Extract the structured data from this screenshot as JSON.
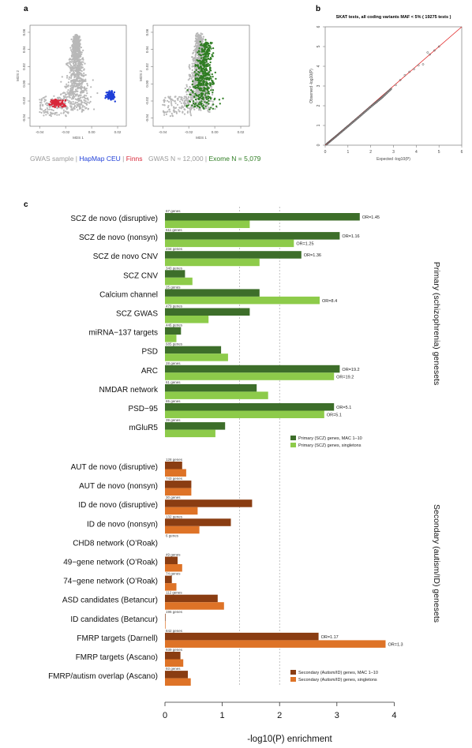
{
  "panel_labels": {
    "a": "a",
    "b": "b",
    "c": "c"
  },
  "panel_a": {
    "left_legend": {
      "sample": "GWAS sample",
      "sep1": " | ",
      "hapmap": "HapMap CEU",
      "sep2": " | ",
      "finns": "Finns"
    },
    "right_legend": {
      "gwas": "GWAS N ≈ 12,000",
      "sep": " | ",
      "exome": "Exome N = 5,079"
    },
    "xlabel": "MDS 1",
    "ylabel": "MDS 2",
    "xticks": [
      "-0.04",
      "-0.02",
      "0.00",
      "0.02"
    ],
    "yticks": [
      "-0.04",
      "-0.02",
      "0.00",
      "0.02",
      "0.04",
      "0.06"
    ],
    "colors": {
      "gwas": "#b8b8b8",
      "hapmap": "#1f3fd8",
      "finns": "#d8283a",
      "exome": "#2e7d22"
    }
  },
  "chart_data": [
    {
      "type": "scatter",
      "title": "SKAT tests, all coding variants MAF < 5% ( 19275 tests )",
      "xlabel": "Expected -log10(P)",
      "ylabel": "Observed -log10(P)",
      "xlim": [
        0,
        6
      ],
      "ylim": [
        0,
        6
      ],
      "xticks": [
        "0",
        "1",
        "2",
        "3",
        "4",
        "5",
        "6"
      ],
      "yticks": [
        "0",
        "1",
        "2",
        "3",
        "4",
        "5",
        "6"
      ],
      "reference_line": "y = x",
      "points": [
        [
          0.05,
          0.04
        ],
        [
          0.3,
          0.28
        ],
        [
          0.6,
          0.57
        ],
        [
          1.0,
          0.96
        ],
        [
          1.5,
          1.45
        ],
        [
          2.0,
          1.95
        ],
        [
          2.5,
          2.42
        ],
        [
          2.9,
          2.86
        ],
        [
          3.1,
          3.05
        ],
        [
          3.3,
          3.3
        ],
        [
          3.5,
          3.55
        ],
        [
          3.7,
          3.72
        ],
        [
          3.9,
          3.85
        ],
        [
          4.1,
          4.05
        ],
        [
          4.3,
          4.1
        ],
        [
          4.5,
          4.7
        ],
        [
          4.6,
          4.6
        ],
        [
          5.0,
          5.0
        ]
      ]
    },
    {
      "type": "bar",
      "orientation": "horizontal",
      "xlabel": "-log10(P) enrichment",
      "xlim": [
        0,
        4
      ],
      "xticks": [
        "0",
        "1",
        "2",
        "3",
        "4"
      ],
      "reference_lines": [
        1.3,
        2.0
      ],
      "groups": [
        {
          "label": "Primary (schizophrenia) genesets",
          "legend": [
            "Primary (SCZ) genes, MAC 1–10",
            "Primary (SCZ) genes, singletons"
          ],
          "colors": [
            "#3d6e2a",
            "#8dcb4a"
          ],
          "categories": [
            "SCZ de novo (disruptive)",
            "SCZ de novo (nonsyn)",
            "SCZ de novo CNV",
            "SCZ CNV",
            "Calcium channel",
            "SCZ GWAS",
            "miRNA−137 targets",
            "PSD",
            "ARC",
            "NMDAR network",
            "PSD−95",
            "mGluR5"
          ],
          "gene_counts": [
            "67 genes",
            "611 genes",
            "234 genes",
            "340 genes",
            "25 genes",
            "479 genes",
            "446 genes",
            "685 genes",
            "28 genes",
            "61 genes",
            "65 genes",
            "39 genes"
          ],
          "series": [
            {
              "name": "Primary (SCZ) genes, MAC 1–10",
              "values": [
                3.4,
                3.05,
                2.38,
                0.35,
                1.65,
                1.48,
                0.28,
                0.98,
                3.05,
                1.6,
                2.95,
                1.05
              ],
              "labels": [
                "OR=1.45",
                "OR=1.16",
                "OR=1.36",
                "",
                "",
                "",
                "",
                "",
                "OR=19.2",
                "",
                "OR=5.1",
                ""
              ]
            },
            {
              "name": "Primary (SCZ) genes, singletons",
              "values": [
                1.48,
                2.25,
                1.65,
                0.48,
                2.7,
                0.76,
                0.2,
                1.1,
                2.95,
                1.8,
                2.78,
                0.88
              ],
              "labels": [
                "",
                "OR=1.25",
                "",
                "",
                "OR=8.4",
                "",
                "",
                "",
                "OR=19.2",
                "",
                "OR=5.1",
                ""
              ]
            }
          ]
        },
        {
          "label": "Secondary (autism/ID) genesets",
          "legend": [
            "Secondary (Autism/ID) genes, MAC 1–10",
            "Secondary (Autism/ID) genes, singletons"
          ],
          "colors": [
            "#8a3d12",
            "#de7327"
          ],
          "categories": [
            "AUT de novo (disruptive)",
            "AUT de novo (nonsyn)",
            "ID de novo (disruptive)",
            "ID de novo (nonsyn)",
            "CHD8 network (O’Roak)",
            "49−gene network (O’Roak)",
            "74−gene network (O’Roak)",
            "ASD candidates (Betancur)",
            "ID candidates (Betancur)",
            "FMRP targets (Darnell)",
            "FMRP targets (Ascano)",
            "FMRP/autism overlap (Ascano)"
          ],
          "gene_counts": [
            "128 genes",
            "743 genes",
            "30 genes",
            "132 genes",
            "6 genes",
            "49 genes",
            "74 genes",
            "112 genes",
            "196 genes",
            "842 genes",
            "939 genes",
            "93 genes"
          ],
          "series": [
            {
              "name": "Secondary (Autism/ID) genes, MAC 1–10",
              "values": [
                0.3,
                0.46,
                1.52,
                1.15,
                0,
                0.22,
                0.12,
                0.92,
                0.01,
                2.68,
                0.27,
                0.4
              ],
              "labels": [
                "",
                "",
                "",
                "",
                "",
                "",
                "",
                "",
                "",
                "OR=1.17",
                "",
                ""
              ]
            },
            {
              "name": "Secondary (Autism/ID) genes, singletons",
              "values": [
                0.37,
                0.46,
                0.57,
                0.6,
                0,
                0.3,
                0.2,
                1.03,
                0.01,
                3.85,
                0.32,
                0.45
              ],
              "labels": [
                "",
                "",
                "",
                "",
                "",
                "",
                "",
                "",
                "",
                "OR=1.3",
                "",
                ""
              ]
            }
          ]
        }
      ]
    }
  ]
}
